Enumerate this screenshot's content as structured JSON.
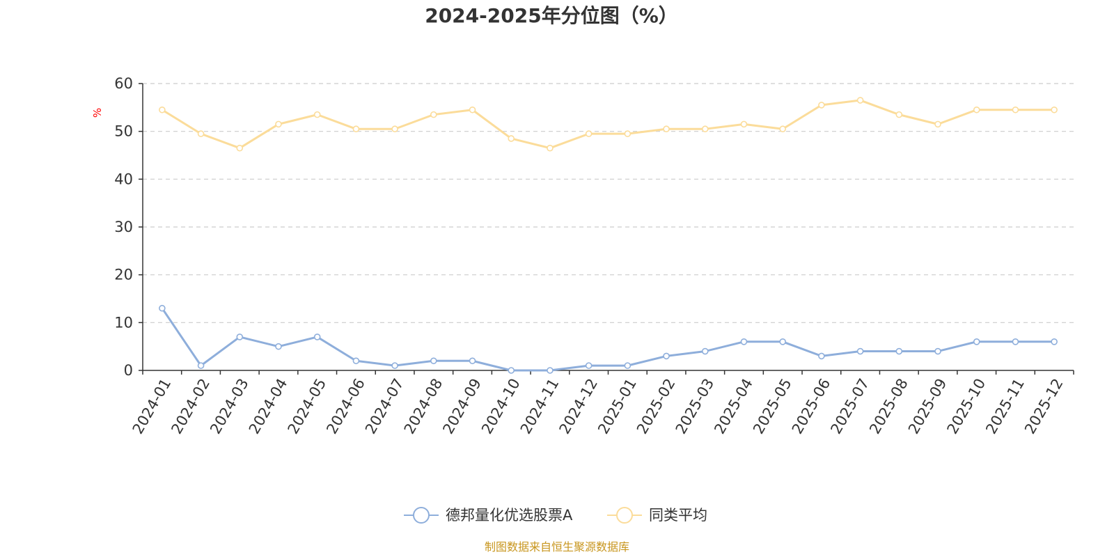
{
  "chart_data": {
    "type": "line",
    "title": "2024-2025年分位图（%）",
    "y_unit": "%",
    "ylim": [
      0,
      60
    ],
    "y_ticks": [
      0,
      10,
      20,
      30,
      40,
      50,
      60
    ],
    "grid": true,
    "legend_position": "bottom-center",
    "categories": [
      "2024-01",
      "2024-02",
      "2024-03",
      "2024-04",
      "2024-05",
      "2024-06",
      "2024-07",
      "2024-08",
      "2024-09",
      "2024-10",
      "2024-11",
      "2024-12",
      "2025-01",
      "2025-02",
      "2025-03",
      "2025-04",
      "2025-05",
      "2025-06",
      "2025-07",
      "2025-08",
      "2025-09",
      "2025-10",
      "2025-11",
      "2025-12"
    ],
    "series": [
      {
        "name": "德邦量化优选股票A",
        "color": "#8eaedb",
        "values": [
          13,
          1,
          7,
          5,
          7,
          2,
          1,
          2,
          2,
          0,
          0,
          1,
          1,
          3,
          4,
          6,
          6,
          3,
          4,
          4,
          4,
          6,
          6,
          6
        ]
      },
      {
        "name": "同类平均",
        "color": "#fbdc9a",
        "values": [
          54.5,
          49.5,
          46.5,
          51.5,
          53.5,
          50.5,
          50.5,
          53.5,
          54.5,
          48.5,
          46.5,
          49.5,
          49.5,
          50.5,
          50.5,
          51.5,
          50.5,
          55.5,
          56.5,
          53.5,
          51.5,
          54.5,
          54.5,
          54.5
        ]
      }
    ],
    "source": "制图数据来自恒生聚源数据库"
  }
}
